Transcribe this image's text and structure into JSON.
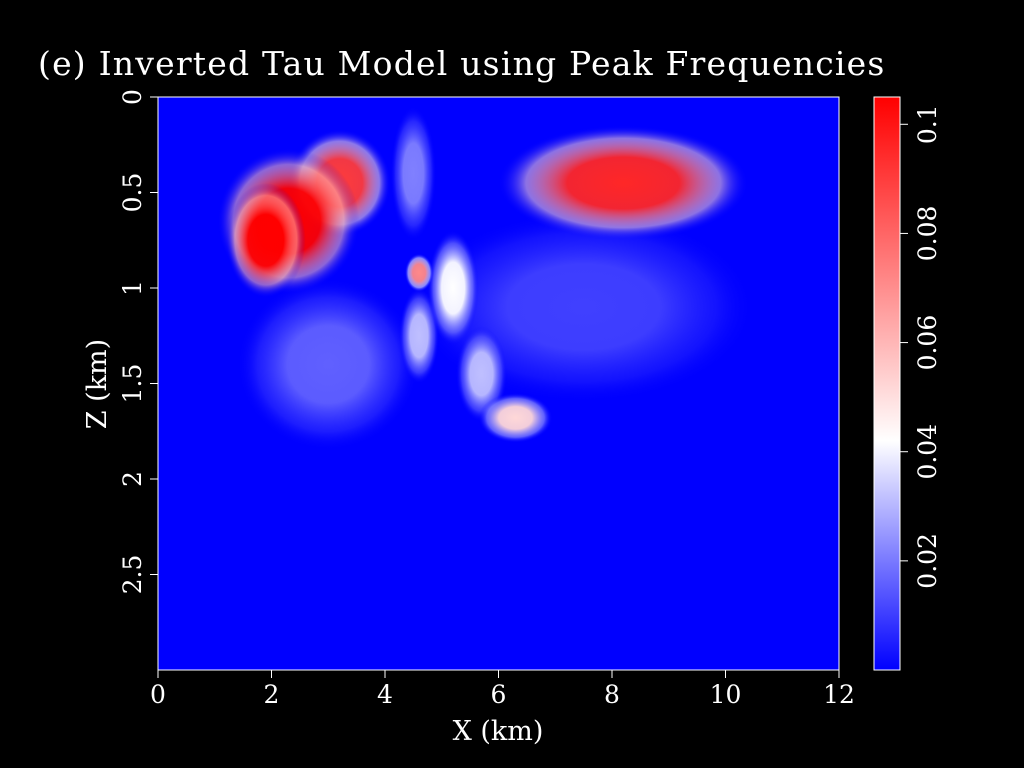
{
  "chart_data": {
    "type": "heatmap",
    "title": "(e) Inverted Tau Model using Peak Frequencies",
    "xlabel": "X (km)",
    "ylabel": "Z (km)",
    "xlim": [
      0,
      12
    ],
    "ylim": [
      0,
      3
    ],
    "y_axis_inverted": true,
    "x_ticks": [
      "0",
      "2",
      "4",
      "6",
      "8",
      "10",
      "12"
    ],
    "y_ticks": [
      "0",
      "0.5",
      "1",
      "1.5",
      "2",
      "2.5"
    ],
    "colorbar": {
      "range": [
        0,
        0.105
      ],
      "ticks": [
        "0.02",
        "0.04",
        "0.06",
        "0.08",
        "0.1"
      ],
      "colormap": [
        "#0000ff",
        "#ffffff",
        "#ff0000"
      ]
    },
    "background_value": 0,
    "anomalies": [
      {
        "shape": "blob",
        "center_x": 2.3,
        "center_z": 0.65,
        "radius_x": 1.25,
        "radius_z": 0.38,
        "value": 0.105
      },
      {
        "shape": "blob",
        "center_x": 3.2,
        "center_z": 0.45,
        "radius_x": 0.9,
        "radius_z": 0.28,
        "value": 0.09
      },
      {
        "shape": "blob",
        "center_x": 1.9,
        "center_z": 0.75,
        "radius_x": 0.7,
        "radius_z": 0.3,
        "value": 0.11
      },
      {
        "shape": "blob",
        "center_x": 8.2,
        "center_z": 0.45,
        "radius_x": 2.2,
        "radius_z": 0.3,
        "value": 0.095
      },
      {
        "shape": "blob",
        "center_x": 4.6,
        "center_z": 0.92,
        "radius_x": 0.25,
        "radius_z": 0.1,
        "value": 0.07
      },
      {
        "shape": "blob",
        "center_x": 5.2,
        "center_z": 1.0,
        "radius_x": 0.45,
        "radius_z": 0.3,
        "value": 0.04
      },
      {
        "shape": "blob",
        "center_x": 4.6,
        "center_z": 1.25,
        "radius_x": 0.35,
        "radius_z": 0.25,
        "value": 0.03
      },
      {
        "shape": "blob",
        "center_x": 5.7,
        "center_z": 1.45,
        "radius_x": 0.45,
        "radius_z": 0.25,
        "value": 0.03
      },
      {
        "shape": "blob",
        "center_x": 6.3,
        "center_z": 1.68,
        "radius_x": 0.65,
        "radius_z": 0.13,
        "value": 0.05
      },
      {
        "shape": "blob",
        "center_x": 3.0,
        "center_z": 1.4,
        "radius_x": 1.6,
        "radius_z": 0.45,
        "value": 0.015
      },
      {
        "shape": "blob",
        "center_x": 7.5,
        "center_z": 1.1,
        "radius_x": 3.0,
        "radius_z": 0.5,
        "value": 0.01
      },
      {
        "shape": "blob",
        "center_x": 4.5,
        "center_z": 0.4,
        "radius_x": 0.4,
        "radius_z": 0.35,
        "value": 0.02
      }
    ]
  }
}
